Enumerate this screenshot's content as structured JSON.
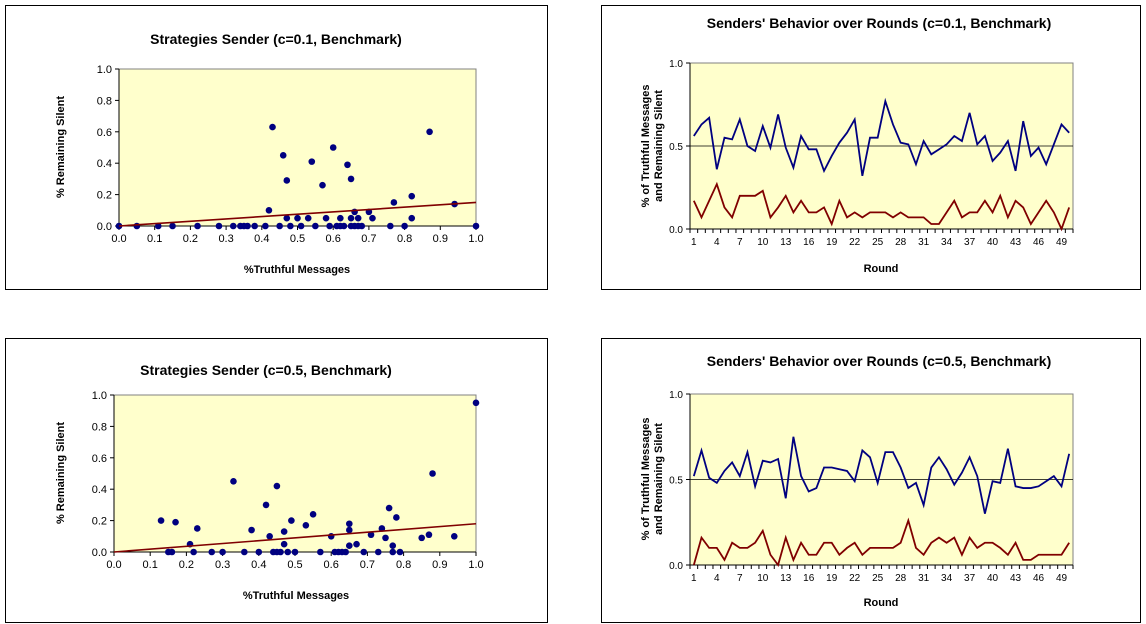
{
  "colors": {
    "plot_bg": "#ffffcc",
    "dots": "#000080",
    "trend": "#800000",
    "truthful_line": "#000080",
    "silent_line": "#800000"
  },
  "chart_data": [
    {
      "type": "scatter",
      "title": "Strategies Sender (c=0.1, Benchmark)",
      "xlabel": "%Truthful Messages",
      "ylabel": "% Remaining Silent",
      "xlim": [
        0,
        1
      ],
      "ylim": [
        0,
        1
      ],
      "x_ticks": [
        "0.0",
        "0.1",
        "0.2",
        "0.3",
        "0.4",
        "0.5",
        "0.6",
        "0.7",
        "0.8",
        "0.9",
        "1.0"
      ],
      "y_ticks": [
        "0.0",
        "0.2",
        "0.4",
        "0.6",
        "0.8",
        "1.0"
      ],
      "grid": false,
      "points": [
        [
          0.0,
          0.0
        ],
        [
          0.05,
          0.0
        ],
        [
          0.11,
          0.0
        ],
        [
          0.15,
          0.0
        ],
        [
          0.22,
          0.0
        ],
        [
          0.28,
          0.0
        ],
        [
          0.32,
          0.0
        ],
        [
          0.34,
          0.0
        ],
        [
          0.35,
          0.0
        ],
        [
          0.36,
          0.0
        ],
        [
          0.38,
          0.0
        ],
        [
          0.41,
          0.0
        ],
        [
          0.42,
          0.1
        ],
        [
          0.43,
          0.63
        ],
        [
          0.45,
          0.0
        ],
        [
          0.46,
          0.45
        ],
        [
          0.47,
          0.29
        ],
        [
          0.47,
          0.05
        ],
        [
          0.48,
          0.0
        ],
        [
          0.5,
          0.05
        ],
        [
          0.51,
          0.0
        ],
        [
          0.53,
          0.05
        ],
        [
          0.54,
          0.41
        ],
        [
          0.55,
          0.0
        ],
        [
          0.57,
          0.26
        ],
        [
          0.58,
          0.05
        ],
        [
          0.59,
          0.0
        ],
        [
          0.6,
          0.5
        ],
        [
          0.61,
          0.0
        ],
        [
          0.62,
          0.0
        ],
        [
          0.62,
          0.05
        ],
        [
          0.63,
          0.0
        ],
        [
          0.64,
          0.39
        ],
        [
          0.65,
          0.3
        ],
        [
          0.65,
          0.0
        ],
        [
          0.65,
          0.05
        ],
        [
          0.66,
          0.09
        ],
        [
          0.66,
          0.0
        ],
        [
          0.67,
          0.05
        ],
        [
          0.67,
          0.0
        ],
        [
          0.68,
          0.0
        ],
        [
          0.7,
          0.09
        ],
        [
          0.71,
          0.05
        ],
        [
          0.76,
          0.0
        ],
        [
          0.77,
          0.15
        ],
        [
          0.8,
          0.0
        ],
        [
          0.82,
          0.19
        ],
        [
          0.82,
          0.05
        ],
        [
          0.87,
          0.6
        ],
        [
          0.94,
          0.14
        ],
        [
          1.0,
          0.0
        ]
      ],
      "trendline": [
        [
          0,
          0.0
        ],
        [
          1,
          0.15
        ]
      ]
    },
    {
      "type": "line",
      "title": "Senders' Behavior over Rounds (c=0.1, Benchmark)",
      "xlabel": "Round",
      "ylabel": "% of Truthful Messages and Remaining Silent",
      "ylim": [
        0,
        1
      ],
      "x_ticks": [
        "1",
        "4",
        "7",
        "10",
        "13",
        "16",
        "19",
        "22",
        "25",
        "28",
        "31",
        "34",
        "37",
        "40",
        "43",
        "46",
        "49"
      ],
      "y_ticks": [
        "0.0",
        "0.5",
        "1.0"
      ],
      "grid": "major at 0.5",
      "x": [
        1,
        2,
        3,
        4,
        5,
        6,
        7,
        8,
        9,
        10,
        11,
        12,
        13,
        14,
        15,
        16,
        17,
        18,
        19,
        20,
        21,
        22,
        23,
        24,
        25,
        26,
        27,
        28,
        29,
        30,
        31,
        32,
        33,
        34,
        35,
        36,
        37,
        38,
        39,
        40,
        41,
        42,
        43,
        44,
        45,
        46,
        47,
        48,
        49,
        50
      ],
      "series": [
        {
          "name": "",
          "values": [
            0.56,
            0.63,
            0.67,
            0.36,
            0.55,
            0.54,
            0.66,
            0.5,
            0.47,
            0.62,
            0.49,
            0.69,
            0.49,
            0.37,
            0.56,
            0.48,
            0.48,
            0.35,
            0.44,
            0.52,
            0.58,
            0.66,
            0.32,
            0.55,
            0.55,
            0.77,
            0.63,
            0.52,
            0.51,
            0.39,
            0.53,
            0.45,
            0.48,
            0.51,
            0.56,
            0.53,
            0.7,
            0.51,
            0.56,
            0.41,
            0.46,
            0.53,
            0.35,
            0.65,
            0.44,
            0.49,
            0.39,
            0.51,
            0.63,
            0.58
          ]
        },
        {
          "name": "",
          "values": [
            0.17,
            0.07,
            0.17,
            0.27,
            0.13,
            0.07,
            0.2,
            0.2,
            0.2,
            0.23,
            0.07,
            0.13,
            0.2,
            0.1,
            0.17,
            0.1,
            0.1,
            0.13,
            0.03,
            0.17,
            0.07,
            0.1,
            0.07,
            0.1,
            0.1,
            0.1,
            0.07,
            0.1,
            0.07,
            0.07,
            0.07,
            0.03,
            0.03,
            0.1,
            0.17,
            0.07,
            0.1,
            0.1,
            0.17,
            0.1,
            0.2,
            0.07,
            0.17,
            0.13,
            0.03,
            0.1,
            0.17,
            0.1,
            0.0,
            0.13
          ]
        }
      ]
    },
    {
      "type": "scatter",
      "title": "Strategies Sender (c=0.5, Benchmark)",
      "xlabel": "%Truthful Messages",
      "ylabel": "% Remaining Silent",
      "xlim": [
        0,
        1
      ],
      "ylim": [
        0,
        1
      ],
      "x_ticks": [
        "0.0",
        "0.1",
        "0.2",
        "0.3",
        "0.4",
        "0.5",
        "0.6",
        "0.7",
        "0.8",
        "0.9",
        "1.0"
      ],
      "y_ticks": [
        "0.0",
        "0.2",
        "0.4",
        "0.6",
        "0.8",
        "1.0"
      ],
      "grid": false,
      "points": [
        [
          0.13,
          0.2
        ],
        [
          0.15,
          0.0
        ],
        [
          0.16,
          0.0
        ],
        [
          0.17,
          0.19
        ],
        [
          0.21,
          0.05
        ],
        [
          0.22,
          0.0
        ],
        [
          0.23,
          0.15
        ],
        [
          0.27,
          0.0
        ],
        [
          0.3,
          0.0
        ],
        [
          0.33,
          0.45
        ],
        [
          0.36,
          0.0
        ],
        [
          0.38,
          0.14
        ],
        [
          0.4,
          0.0
        ],
        [
          0.42,
          0.3
        ],
        [
          0.43,
          0.1
        ],
        [
          0.44,
          0.0
        ],
        [
          0.45,
          0.0
        ],
        [
          0.45,
          0.42
        ],
        [
          0.46,
          0.0
        ],
        [
          0.47,
          0.05
        ],
        [
          0.47,
          0.13
        ],
        [
          0.48,
          0.0
        ],
        [
          0.49,
          0.2
        ],
        [
          0.5,
          0.0
        ],
        [
          0.53,
          0.17
        ],
        [
          0.55,
          0.24
        ],
        [
          0.57,
          0.0
        ],
        [
          0.6,
          0.1
        ],
        [
          0.61,
          0.0
        ],
        [
          0.62,
          0.0
        ],
        [
          0.63,
          0.0
        ],
        [
          0.64,
          0.0
        ],
        [
          0.65,
          0.04
        ],
        [
          0.65,
          0.14
        ],
        [
          0.65,
          0.18
        ],
        [
          0.67,
          0.05
        ],
        [
          0.69,
          0.0
        ],
        [
          0.71,
          0.11
        ],
        [
          0.73,
          0.0
        ],
        [
          0.74,
          0.15
        ],
        [
          0.75,
          0.09
        ],
        [
          0.76,
          0.28
        ],
        [
          0.77,
          0.0
        ],
        [
          0.77,
          0.04
        ],
        [
          0.78,
          0.22
        ],
        [
          0.79,
          0.0
        ],
        [
          0.85,
          0.09
        ],
        [
          0.87,
          0.11
        ],
        [
          0.88,
          0.5
        ],
        [
          0.94,
          0.1
        ],
        [
          1.0,
          0.95
        ]
      ],
      "trendline": [
        [
          0,
          0.0
        ],
        [
          1,
          0.18
        ]
      ]
    },
    {
      "type": "line",
      "title": "Senders' Behavior over Rounds (c=0.5, Benchmark)",
      "xlabel": "Round",
      "ylabel": "% of Truthful Messages and Remaining Silent",
      "ylim": [
        0,
        1
      ],
      "x_ticks": [
        "1",
        "4",
        "7",
        "10",
        "13",
        "16",
        "19",
        "22",
        "25",
        "28",
        "31",
        "34",
        "37",
        "40",
        "43",
        "46",
        "49"
      ],
      "y_ticks": [
        "0.0",
        "0.5",
        "1.0"
      ],
      "grid": "major at 0.5",
      "x": [
        1,
        2,
        3,
        4,
        5,
        6,
        7,
        8,
        9,
        10,
        11,
        12,
        13,
        14,
        15,
        16,
        17,
        18,
        19,
        20,
        21,
        22,
        23,
        24,
        25,
        26,
        27,
        28,
        29,
        30,
        31,
        32,
        33,
        34,
        35,
        36,
        37,
        38,
        39,
        40,
        41,
        42,
        43,
        44,
        45,
        46,
        47,
        48,
        49,
        50
      ],
      "series": [
        {
          "name": "",
          "values": [
            0.52,
            0.67,
            0.51,
            0.48,
            0.55,
            0.6,
            0.52,
            0.66,
            0.46,
            0.61,
            0.6,
            0.62,
            0.39,
            0.75,
            0.52,
            0.43,
            0.45,
            0.57,
            0.57,
            0.56,
            0.55,
            0.49,
            0.67,
            0.63,
            0.48,
            0.66,
            0.66,
            0.57,
            0.45,
            0.48,
            0.35,
            0.57,
            0.63,
            0.56,
            0.47,
            0.54,
            0.63,
            0.52,
            0.3,
            0.49,
            0.48,
            0.68,
            0.46,
            0.45,
            0.45,
            0.46,
            0.49,
            0.52,
            0.46,
            0.65
          ]
        },
        {
          "name": "",
          "values": [
            0.0,
            0.16,
            0.1,
            0.1,
            0.03,
            0.13,
            0.1,
            0.1,
            0.13,
            0.2,
            0.06,
            0.0,
            0.16,
            0.03,
            0.13,
            0.06,
            0.06,
            0.13,
            0.13,
            0.06,
            0.1,
            0.13,
            0.06,
            0.1,
            0.1,
            0.1,
            0.1,
            0.13,
            0.26,
            0.1,
            0.06,
            0.13,
            0.16,
            0.13,
            0.16,
            0.06,
            0.16,
            0.1,
            0.13,
            0.13,
            0.1,
            0.06,
            0.13,
            0.03,
            0.03,
            0.06,
            0.06,
            0.06,
            0.06,
            0.13
          ]
        }
      ]
    }
  ]
}
